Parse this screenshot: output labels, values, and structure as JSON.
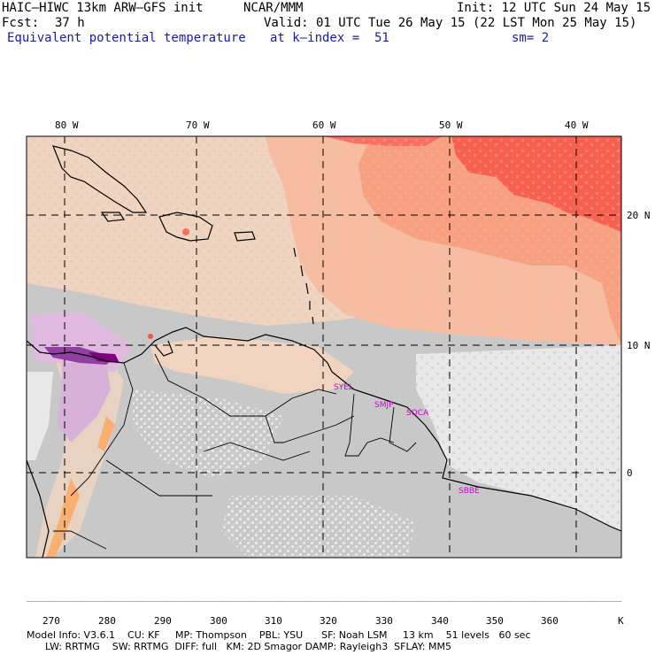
{
  "header": {
    "model": "HAIC–HIWC 13km ARW–GFS init",
    "org": "NCAR/MMM",
    "init": "Init: 12 UTC Sun 24 May 15",
    "fcst_label": "Fcst:",
    "fcst_value": "37 h",
    "valid": "Valid: 01 UTC Tue 26 May 15 (22 LST Mon 25 May 15)",
    "field": "Equivalent potential temperature",
    "level": "at k–index =  51",
    "smoothing": "sm= 2"
  },
  "map": {
    "lon_labels": [
      "80 W",
      "70 W",
      "60 W",
      "50 W",
      "40 W"
    ],
    "lat_labels": [
      "20 N",
      "10 N",
      "0"
    ],
    "stations": [
      "SYEL",
      "SMJP",
      "SOCA",
      "SBBE"
    ]
  },
  "colorbar": {
    "unit": "K",
    "tick_labels": [
      "270",
      "280",
      "290",
      "300",
      "310",
      "320",
      "330",
      "340",
      "350",
      "360"
    ],
    "colors": [
      "#c050c8",
      "#a060d0",
      "#8070e0",
      "#5090e8",
      "#30c8d0",
      "#30e8a0",
      "#60e860",
      "#b8f060",
      "#e8f070",
      "#f8d060",
      "#f8b070",
      "#f87060",
      "#f85050",
      "#f8a080",
      "#f8c8a8",
      "#d8d0c8",
      "#c8c8c8",
      "#e8e8e8",
      "#e8c8e8",
      "#b860b8",
      "#800080"
    ]
  },
  "footer": {
    "line1": "Model Info: V3.6.1    CU: KF     MP: Thompson    PBL: YSU      SF: Noah LSM     13 km    51 levels   60 sec",
    "line2": "      LW: RRTMG    SW: RRTMG  DIFF: full   KM: 2D Smagor DAMP: Rayleigh3  SFLAY: MM5"
  }
}
